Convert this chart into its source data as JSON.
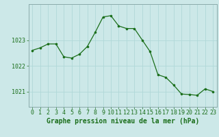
{
  "x": [
    0,
    1,
    2,
    3,
    4,
    5,
    6,
    7,
    8,
    9,
    10,
    11,
    12,
    13,
    14,
    15,
    16,
    17,
    18,
    19,
    20,
    21,
    22,
    23
  ],
  "y": [
    1022.6,
    1022.7,
    1022.85,
    1022.85,
    1022.35,
    1022.3,
    1022.45,
    1022.75,
    1023.3,
    1023.9,
    1023.95,
    1023.55,
    1023.45,
    1023.45,
    1023.0,
    1022.55,
    1021.65,
    1021.55,
    1021.25,
    1020.9,
    1020.88,
    1020.85,
    1021.1,
    1021.0
  ],
  "line_color": "#1a6e1a",
  "marker_color": "#1a6e1a",
  "bg_color": "#cce8e8",
  "plot_bg_color": "#cce8e8",
  "border_color": "#8aabab",
  "grid_color": "#b0d8d8",
  "axis_color": "#1a6e1a",
  "tick_color": "#1a6e1a",
  "xlabel": "Graphe pression niveau de la mer (hPa)",
  "xlabel_fontsize": 7,
  "tick_fontsize": 6,
  "ytick_labels": [
    "1021",
    "1022",
    "1023"
  ],
  "ytick_values": [
    1021,
    1022,
    1023
  ],
  "ylim": [
    1020.4,
    1024.4
  ],
  "xlim": [
    -0.5,
    23.5
  ]
}
